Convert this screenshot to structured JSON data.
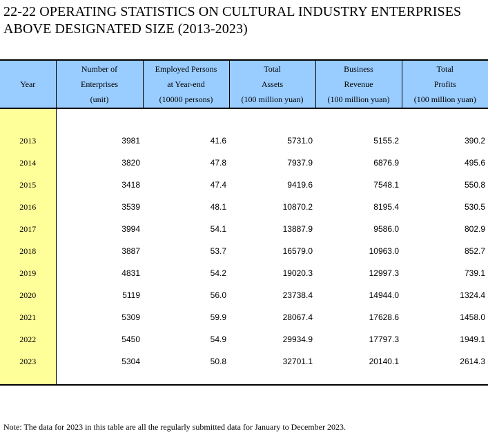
{
  "title": {
    "line1": "22-22  OPERATING STATISTICS ON CULTURAL INDUSTRY ENTERPRISES",
    "line2": "ABOVE DESIGNATED SIZE (2013-2023)"
  },
  "columns": [
    {
      "lines": [
        "Year"
      ]
    },
    {
      "lines": [
        "Number of",
        "Enterprises",
        "(unit)"
      ]
    },
    {
      "lines": [
        "Employed Persons",
        "at Year-end",
        "(10000 persons)"
      ]
    },
    {
      "lines": [
        "Total",
        "Assets",
        "(100 million yuan)"
      ]
    },
    {
      "lines": [
        "Business",
        "Revenue",
        "(100 million yuan)"
      ]
    },
    {
      "lines": [
        "Total",
        "Profits",
        "(100 million yuan)"
      ]
    }
  ],
  "rows": [
    [
      "2013",
      "3981",
      "41.6",
      "5731.0",
      "5155.2",
      "390.2"
    ],
    [
      "2014",
      "3820",
      "47.8",
      "7937.9",
      "6876.9",
      "495.6"
    ],
    [
      "2015",
      "3418",
      "47.4",
      "9419.6",
      "7548.1",
      "550.8"
    ],
    [
      "2016",
      "3539",
      "48.1",
      "10870.2",
      "8195.4",
      "530.5"
    ],
    [
      "2017",
      "3994",
      "54.1",
      "13887.9",
      "9586.0",
      "802.9"
    ],
    [
      "2018",
      "3887",
      "53.7",
      "16579.0",
      "10963.0",
      "852.7"
    ],
    [
      "2019",
      "4831",
      "54.2",
      "19020.3",
      "12997.3",
      "739.1"
    ],
    [
      "2020",
      "5119",
      "56.0",
      "23738.4",
      "14944.0",
      "1324.4"
    ],
    [
      "2021",
      "5309",
      "59.9",
      "28067.4",
      "17628.6",
      "1458.0"
    ],
    [
      "2022",
      "5450",
      "54.9",
      "29934.9",
      "17797.3",
      "1949.1"
    ],
    [
      "2023",
      "5304",
      "50.8",
      "32701.1",
      "20140.1",
      "2614.3"
    ]
  ],
  "note": "Note: The data for 2023 in this table are all the regularly submitted data for January to December 2023.",
  "colors": {
    "header_bg": "#99ccff",
    "year_bg": "#ffff99"
  }
}
